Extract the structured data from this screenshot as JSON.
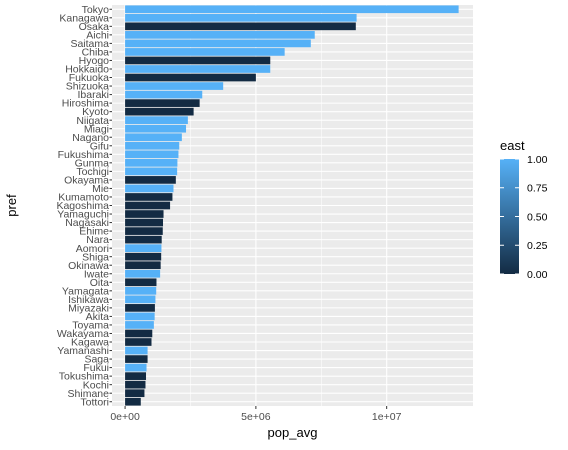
{
  "chart_data": {
    "type": "bar",
    "orientation": "horizontal",
    "xlabel": "pop_avg",
    "ylabel": "pref",
    "xlim": [
      -500000,
      13300000
    ],
    "x_ticks": [
      {
        "value": 0,
        "label": "0e+00"
      },
      {
        "value": 5000000,
        "label": "5e+06"
      },
      {
        "value": 10000000,
        "label": "1e+07"
      }
    ],
    "grid": true,
    "legend": {
      "title": "east",
      "placement": "right",
      "type": "colorbar",
      "min": 0.0,
      "max": 1.0,
      "low_color": "#132B43",
      "high_color": "#56B1F7",
      "ticks": [
        {
          "value": 1.0,
          "label": "1.00"
        },
        {
          "value": 0.75,
          "label": "0.75"
        },
        {
          "value": 0.5,
          "label": "0.50"
        },
        {
          "value": 0.25,
          "label": "0.25"
        },
        {
          "value": 0.0,
          "label": "0.00"
        }
      ]
    },
    "colors": {
      "panel_background": "#EBEBEB",
      "grid_major": "#FFFFFF",
      "low": "#132B43",
      "high": "#56B1F7"
    },
    "bars": [
      {
        "category": "Tokyo",
        "value": 12750000,
        "east": 1
      },
      {
        "category": "Kanagawa",
        "value": 8850000,
        "east": 1
      },
      {
        "category": "Osaka",
        "value": 8820000,
        "east": 0
      },
      {
        "category": "Aichi",
        "value": 7250000,
        "east": 1
      },
      {
        "category": "Saitama",
        "value": 7100000,
        "east": 1
      },
      {
        "category": "Chiba",
        "value": 6100000,
        "east": 1
      },
      {
        "category": "Hyogo",
        "value": 5550000,
        "east": 0
      },
      {
        "category": "Hokkaido",
        "value": 5550000,
        "east": 1
      },
      {
        "category": "Fukuoka",
        "value": 5000000,
        "east": 0
      },
      {
        "category": "Shizuoka",
        "value": 3750000,
        "east": 1
      },
      {
        "category": "Ibaraki",
        "value": 2950000,
        "east": 1
      },
      {
        "category": "Hiroshima",
        "value": 2850000,
        "east": 0
      },
      {
        "category": "Kyoto",
        "value": 2620000,
        "east": 0
      },
      {
        "category": "Niigata",
        "value": 2400000,
        "east": 1
      },
      {
        "category": "Miagi",
        "value": 2330000,
        "east": 1
      },
      {
        "category": "Nagano",
        "value": 2170000,
        "east": 1
      },
      {
        "category": "Gifu",
        "value": 2070000,
        "east": 1
      },
      {
        "category": "Fukushima",
        "value": 2040000,
        "east": 1
      },
      {
        "category": "Gunma",
        "value": 2000000,
        "east": 1
      },
      {
        "category": "Tochigi",
        "value": 1990000,
        "east": 1
      },
      {
        "category": "Okayama",
        "value": 1940000,
        "east": 0
      },
      {
        "category": "Mie",
        "value": 1850000,
        "east": 1
      },
      {
        "category": "Kumamoto",
        "value": 1810000,
        "east": 0
      },
      {
        "category": "Kagoshima",
        "value": 1720000,
        "east": 0
      },
      {
        "category": "Yamaguchi",
        "value": 1470000,
        "east": 0
      },
      {
        "category": "Nagasaki",
        "value": 1450000,
        "east": 0
      },
      {
        "category": "Ehime",
        "value": 1440000,
        "east": 0
      },
      {
        "category": "Nara",
        "value": 1400000,
        "east": 0
      },
      {
        "category": "Aomori",
        "value": 1390000,
        "east": 1
      },
      {
        "category": "Shiga",
        "value": 1380000,
        "east": 0
      },
      {
        "category": "Okinawa",
        "value": 1360000,
        "east": 0
      },
      {
        "category": "Iwate",
        "value": 1340000,
        "east": 1
      },
      {
        "category": "Oita",
        "value": 1200000,
        "east": 0
      },
      {
        "category": "Yamagata",
        "value": 1190000,
        "east": 1
      },
      {
        "category": "Ishikawa",
        "value": 1160000,
        "east": 1
      },
      {
        "category": "Miyazaki",
        "value": 1140000,
        "east": 0
      },
      {
        "category": "Akita",
        "value": 1130000,
        "east": 1
      },
      {
        "category": "Toyama",
        "value": 1100000,
        "east": 1
      },
      {
        "category": "Wakayama",
        "value": 1040000,
        "east": 0
      },
      {
        "category": "Kagawa",
        "value": 1010000,
        "east": 0
      },
      {
        "category": "Yamanashi",
        "value": 860000,
        "east": 1
      },
      {
        "category": "Saga",
        "value": 860000,
        "east": 0
      },
      {
        "category": "Fukui",
        "value": 820000,
        "east": 1
      },
      {
        "category": "Tokushima",
        "value": 800000,
        "east": 0
      },
      {
        "category": "Kochi",
        "value": 780000,
        "east": 0
      },
      {
        "category": "Shimane",
        "value": 740000,
        "east": 0
      },
      {
        "category": "Tottori",
        "value": 600000,
        "east": 0
      }
    ]
  }
}
